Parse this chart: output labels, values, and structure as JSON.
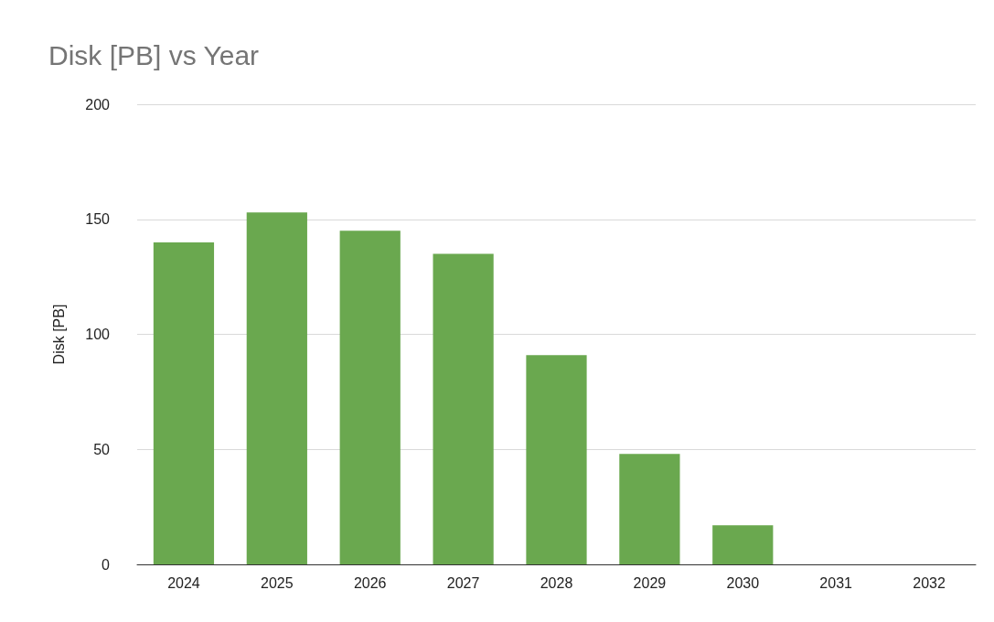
{
  "chart_data": {
    "type": "bar",
    "title": "Disk [PB] vs Year",
    "ylabel": "Disk [PB]",
    "categories": [
      "2024",
      "2025",
      "2026",
      "2027",
      "2028",
      "2029",
      "2030",
      "2031",
      "2032"
    ],
    "values": [
      140,
      153,
      145,
      135,
      91,
      48,
      17,
      0,
      0
    ],
    "color": "#6aa84f",
    "ylim": [
      0,
      200
    ],
    "yticks": [
      0,
      50,
      100,
      150,
      200
    ],
    "grid": "y"
  }
}
